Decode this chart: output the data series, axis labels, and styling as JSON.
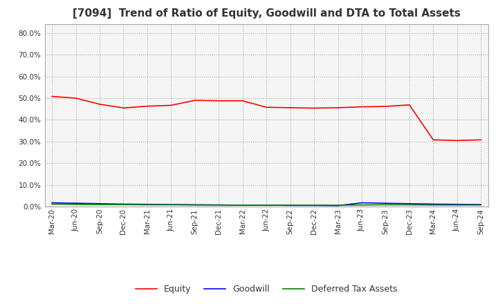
{
  "title": "[7094]  Trend of Ratio of Equity, Goodwill and DTA to Total Assets",
  "title_fontsize": 11,
  "xlabels": [
    "Mar-20",
    "Jun-20",
    "Sep-20",
    "Dec-20",
    "Mar-21",
    "Jun-21",
    "Sep-21",
    "Dec-21",
    "Mar-22",
    "Jun-22",
    "Sep-22",
    "Dec-22",
    "Mar-23",
    "Jun-23",
    "Sep-23",
    "Dec-23",
    "Mar-24",
    "Jun-24",
    "Sep-24"
  ],
  "ylim": [
    0.0,
    0.84
  ],
  "yticks": [
    0.0,
    0.1,
    0.2,
    0.3,
    0.4,
    0.5,
    0.6,
    0.7,
    0.8
  ],
  "equity": [
    0.508,
    0.5,
    0.472,
    0.455,
    0.463,
    0.467,
    0.49,
    0.488,
    0.488,
    0.458,
    0.456,
    0.454,
    0.456,
    0.46,
    0.462,
    0.469,
    0.308,
    0.305,
    0.308
  ],
  "goodwill": [
    0.018,
    0.016,
    0.014,
    0.012,
    0.011,
    0.01,
    0.009,
    0.008,
    0.007,
    0.007,
    0.006,
    0.006,
    0.005,
    0.018,
    0.016,
    0.014,
    0.012,
    0.011,
    0.01
  ],
  "dta": [
    0.012,
    0.011,
    0.01,
    0.01,
    0.009,
    0.009,
    0.008,
    0.008,
    0.007,
    0.007,
    0.007,
    0.007,
    0.007,
    0.008,
    0.009,
    0.009,
    0.008,
    0.008,
    0.008
  ],
  "equity_color": "#ff0000",
  "goodwill_color": "#0000ff",
  "dta_color": "#008000",
  "bg_color": "#ffffff",
  "plot_bg_color": "#f5f5f5",
  "grid_color": "#aaaaaa",
  "legend_labels": [
    "Equity",
    "Goodwill",
    "Deferred Tax Assets"
  ]
}
